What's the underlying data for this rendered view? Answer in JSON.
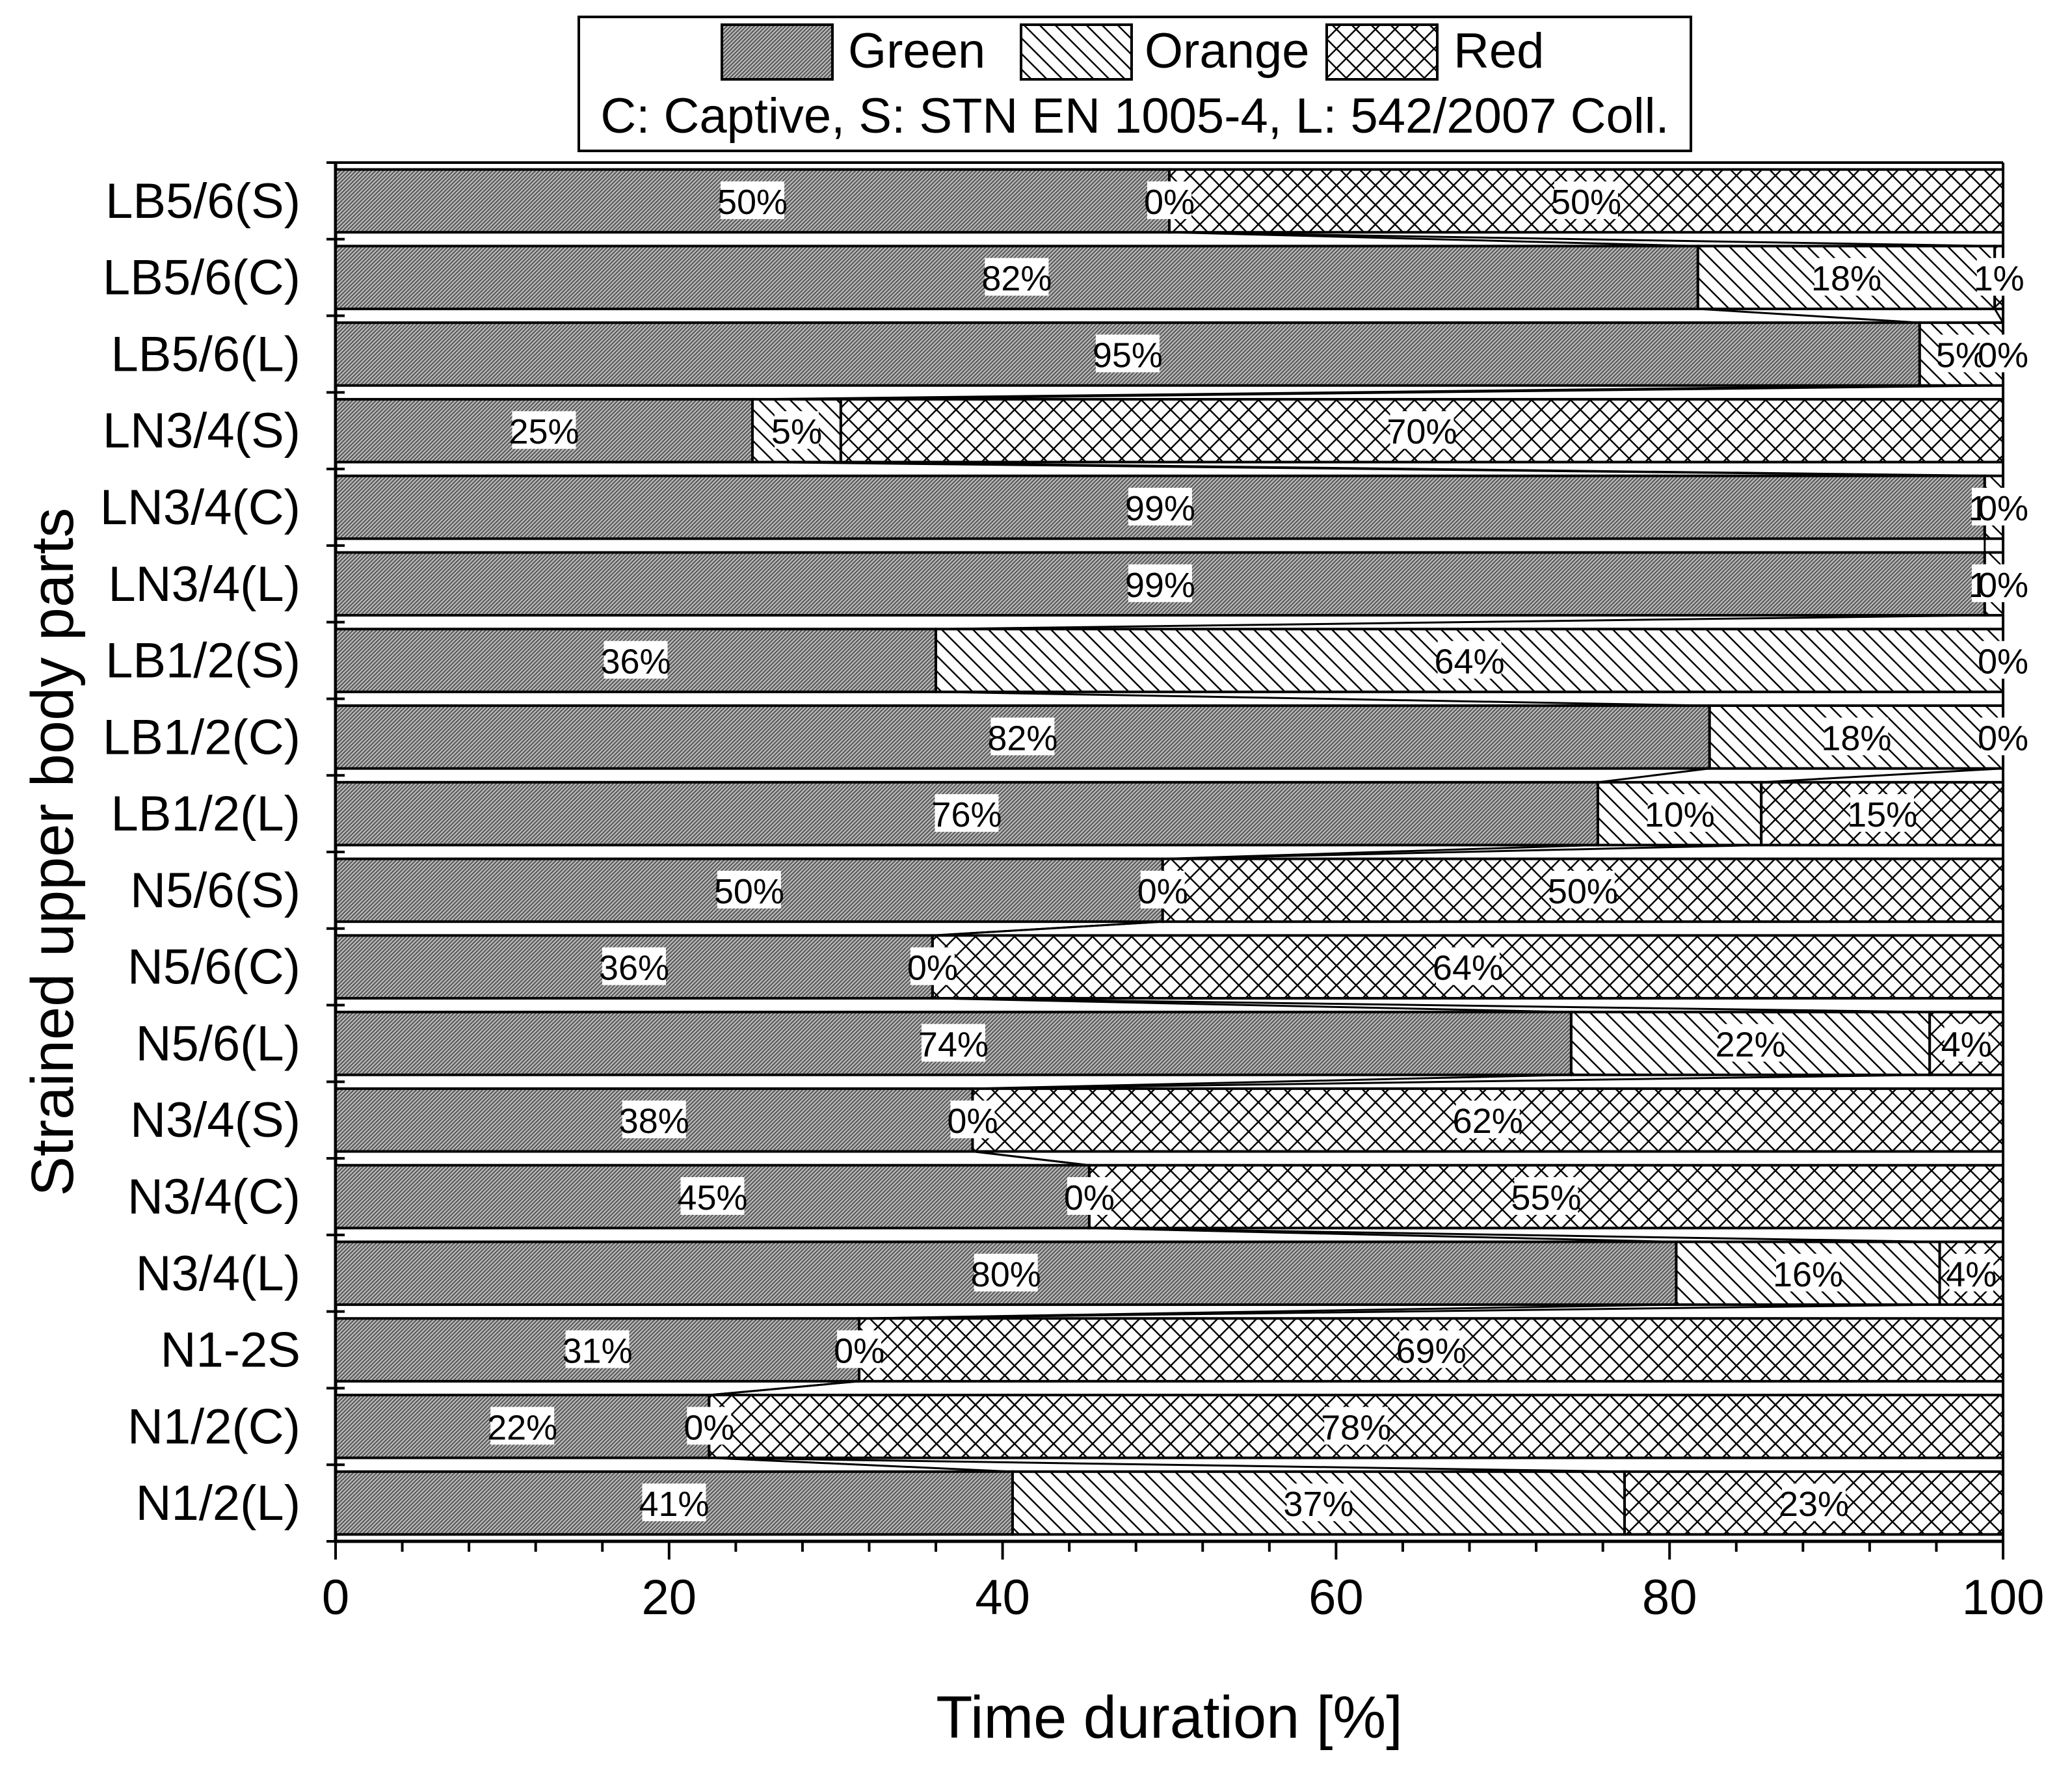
{
  "chart_data": {
    "type": "bar",
    "orientation": "horizontal",
    "stacked": true,
    "title": "",
    "xlabel": "Time duration [%]",
    "ylabel": "Strained upper body parts",
    "xlim": [
      0,
      100
    ],
    "xticks": [
      "0",
      "20",
      "40",
      "60",
      "80",
      "100"
    ],
    "legend_position": "top",
    "legend_note": "C: Captive, S: STN EN 1005-4, L: 542/2007 Coll.",
    "categories": [
      "LB5/6(S)",
      "LB5/6(C)",
      "LB5/6(L)",
      "LN3/4(S)",
      "LN3/4(C)",
      "LN3/4(L)",
      "LB1/2(S)",
      "LB1/2(C)",
      "LB1/2(L)",
      "N5/6(S)",
      "N5/6(C)",
      "N5/6(L)",
      "N3/4(S)",
      "N3/4(C)",
      "N3/4(L)",
      "N1-2S",
      "N1/2(C)",
      "N1/2(L)"
    ],
    "series": [
      {
        "name": "Green",
        "pattern": "dense-gray",
        "values": [
          50,
          81.7,
          95,
          25,
          98.9,
          98.9,
          36,
          82.4,
          75.7,
          49.6,
          35.8,
          74.1,
          38.2,
          45.2,
          80.4,
          31.4,
          22.4,
          40.6
        ],
        "labels": [
          "50%",
          "82%",
          "95%",
          "25%",
          "99%",
          "99%",
          "36%",
          "82%",
          "76%",
          "50%",
          "36%",
          "74%",
          "38%",
          "45%",
          "80%",
          "31%",
          "22%",
          "41%"
        ]
      },
      {
        "name": "Orange",
        "pattern": "diagonal-hatch",
        "values": [
          0,
          17.8,
          5,
          5.3,
          1.1,
          1.1,
          64,
          17.6,
          9.8,
          0,
          0,
          21.5,
          0,
          0,
          15.8,
          0,
          0,
          36.7
        ],
        "labels": [
          "0%",
          "18%",
          "5%",
          "5%",
          "1%",
          "1%",
          "64%",
          "18%",
          "10%",
          "0%",
          "0%",
          "22%",
          "0%",
          "0%",
          "16%",
          "0%",
          "0%",
          "37%"
        ]
      },
      {
        "name": "Red",
        "pattern": "cross-hatch",
        "values": [
          50,
          0.5,
          0,
          69.7,
          0,
          0,
          0,
          0,
          14.5,
          50.4,
          64.2,
          4.4,
          61.8,
          54.8,
          3.8,
          68.6,
          77.6,
          22.7
        ],
        "labels": [
          "50%",
          "1%",
          "0%",
          "70%",
          "0%",
          "0%",
          "0%",
          "0%",
          "15%",
          "50%",
          "64%",
          "4%",
          "62%",
          "55%",
          "4%",
          "69%",
          "78%",
          "23%"
        ]
      }
    ]
  }
}
